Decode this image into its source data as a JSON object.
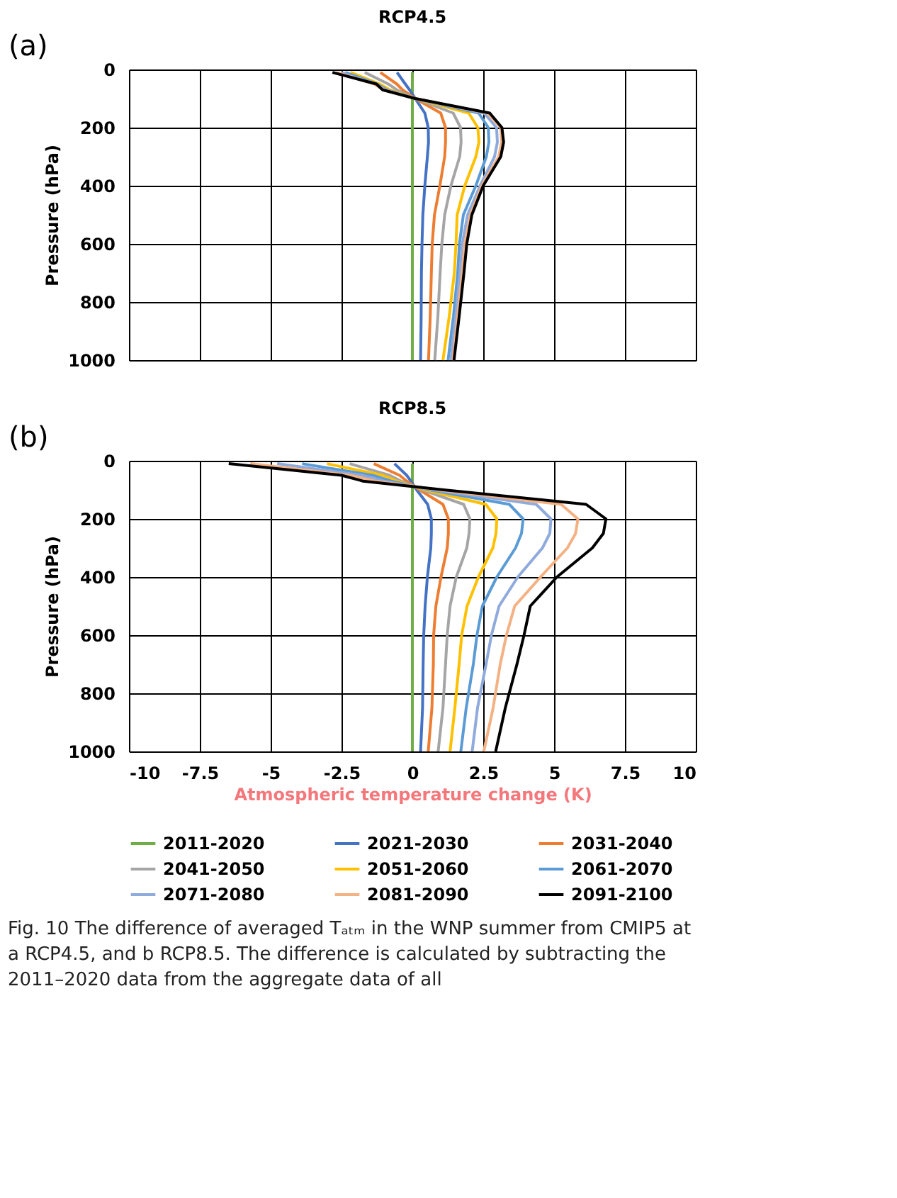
{
  "chart_data": [
    {
      "type": "line",
      "title": "RCP4.5",
      "annotations": [
        "(a)"
      ],
      "ylabel": "Pressure (hPa)",
      "xlim": [
        -10,
        10
      ],
      "xticks": [
        -10,
        -7.5,
        -5,
        -2.5,
        0,
        2.5,
        5,
        7.5,
        10
      ],
      "ylim": [
        1000,
        0
      ],
      "yticks": [
        0,
        200,
        400,
        600,
        800,
        1000
      ],
      "grid": true,
      "legend": "bottom",
      "tick_labels": "y",
      "series": [
        {
          "name": "2011-2020",
          "color": "#70ad47",
          "x": [
            0,
            0,
            0,
            0,
            0,
            0,
            0,
            0,
            0,
            0,
            0,
            0,
            0,
            0
          ],
          "values": [
            10,
            50,
            70,
            100,
            150,
            200,
            250,
            300,
            400,
            500,
            600,
            700,
            850,
            1000
          ]
        },
        {
          "name": "2021-2030",
          "color": "#4472c4",
          "x": [
            -0.54,
            -0.25,
            -0.1,
            0.1,
            0.44,
            0.56,
            0.57,
            0.53,
            0.44,
            0.37,
            0.34,
            0.32,
            0.31,
            0.29
          ],
          "values": [
            10,
            50,
            70,
            100,
            150,
            200,
            250,
            300,
            400,
            500,
            600,
            700,
            850,
            1000
          ]
        },
        {
          "name": "2031-2040",
          "color": "#ed7d31",
          "x": [
            -1.13,
            -0.55,
            -0.35,
            0.1,
            1.0,
            1.17,
            1.17,
            1.14,
            0.97,
            0.78,
            0.7,
            0.67,
            0.63,
            0.57
          ],
          "values": [
            10,
            50,
            70,
            100,
            150,
            200,
            250,
            300,
            400,
            500,
            600,
            700,
            850,
            1000
          ]
        },
        {
          "name": "2041-2050",
          "color": "#a5a5a5",
          "x": [
            -1.68,
            -0.85,
            -0.55,
            0.1,
            1.44,
            1.7,
            1.72,
            1.67,
            1.36,
            1.14,
            1.04,
            0.98,
            0.9,
            0.79
          ],
          "values": [
            10,
            50,
            70,
            100,
            150,
            200,
            250,
            300,
            400,
            500,
            600,
            700,
            850,
            1000
          ]
        },
        {
          "name": "2051-2060",
          "color": "#ffc000",
          "x": [
            -2.18,
            -1.15,
            -0.8,
            0.1,
            1.99,
            2.31,
            2.35,
            2.24,
            1.85,
            1.58,
            1.54,
            1.48,
            1.3,
            1.08
          ],
          "values": [
            10,
            50,
            70,
            100,
            150,
            200,
            250,
            300,
            400,
            500,
            600,
            700,
            850,
            1000
          ]
        },
        {
          "name": "2061-2070",
          "color": "#5b9bd5",
          "x": [
            -2.37,
            -1.25,
            -0.9,
            0.1,
            2.34,
            2.68,
            2.7,
            2.61,
            2.24,
            1.8,
            1.66,
            1.6,
            1.45,
            1.26
          ],
          "values": [
            10,
            50,
            70,
            100,
            150,
            200,
            250,
            300,
            400,
            500,
            600,
            700,
            850,
            1000
          ]
        },
        {
          "name": "2071-2080",
          "color": "#8faadc",
          "x": [
            -2.52,
            -1.3,
            -0.95,
            0.1,
            2.53,
            2.97,
            3.0,
            2.9,
            2.39,
            1.95,
            1.76,
            1.68,
            1.53,
            1.36
          ],
          "values": [
            10,
            50,
            70,
            100,
            150,
            200,
            250,
            300,
            400,
            500,
            600,
            700,
            850,
            1000
          ]
        },
        {
          "name": "2081-2090",
          "color": "#f4b183",
          "x": [
            -2.67,
            -1.35,
            -1.0,
            0.1,
            2.65,
            3.12,
            3.15,
            3.05,
            2.45,
            2.05,
            1.85,
            1.76,
            1.6,
            1.43
          ],
          "values": [
            10,
            50,
            70,
            100,
            150,
            200,
            250,
            300,
            400,
            500,
            600,
            700,
            850,
            1000
          ]
        },
        {
          "name": "2091-2100",
          "color": "#000000",
          "x": [
            -2.82,
            -1.27,
            -1.05,
            0.1,
            2.73,
            3.16,
            3.22,
            3.12,
            2.5,
            2.1,
            1.92,
            1.82,
            1.65,
            1.47
          ],
          "values": [
            10,
            50,
            70,
            100,
            150,
            200,
            250,
            300,
            400,
            500,
            600,
            700,
            850,
            1000
          ]
        }
      ]
    },
    {
      "type": "line",
      "title": "RCP8.5",
      "annotations": [
        "(b)",
        "Fig. 10  The difference of averaged Tₐₜₘ in the WNP summer from CMIP5 at a RCP4.5, and b RCP8.5. The difference is calculated by subtracting the 2011–2020 data from the aggregate data of all"
      ],
      "xlabel": "Atmospheric temperature change (K)",
      "ylabel": "Pressure (hPa)",
      "xlim": [
        -10,
        10
      ],
      "xticks": [
        -10,
        -7.5,
        -5,
        -2.5,
        0,
        2.5,
        5,
        7.5,
        10
      ],
      "ylim": [
        1000,
        0
      ],
      "yticks": [
        0,
        200,
        400,
        600,
        800,
        1000
      ],
      "grid": true,
      "legend": "bottom",
      "series": [
        {
          "name": "2011-2020",
          "color": "#70ad47",
          "x": [
            0,
            0,
            0,
            0,
            0,
            0,
            0,
            0,
            0,
            0,
            0,
            0,
            0,
            0
          ],
          "values": [
            10,
            50,
            70,
            100,
            150,
            200,
            250,
            300,
            400,
            500,
            600,
            700,
            850,
            1000
          ]
        },
        {
          "name": "2021-2030",
          "color": "#4472c4",
          "x": [
            -0.63,
            -0.2,
            -0.05,
            0.15,
            0.54,
            0.67,
            0.67,
            0.65,
            0.53,
            0.45,
            0.4,
            0.38,
            0.36,
            0.29
          ],
          "values": [
            10,
            50,
            70,
            100,
            150,
            200,
            250,
            300,
            400,
            500,
            600,
            700,
            850,
            1000
          ]
        },
        {
          "name": "2031-2040",
          "color": "#ed7d31",
          "x": [
            -1.36,
            -0.45,
            -0.2,
            0.25,
            1.08,
            1.27,
            1.27,
            1.23,
            1.01,
            0.83,
            0.75,
            0.74,
            0.69,
            0.56
          ],
          "values": [
            10,
            50,
            70,
            100,
            150,
            200,
            250,
            300,
            400,
            500,
            600,
            700,
            850,
            1000
          ]
        },
        {
          "name": "2041-2050",
          "color": "#a5a5a5",
          "x": [
            -2.21,
            -0.8,
            -0.4,
            0.35,
            1.81,
            2.03,
            2.0,
            1.92,
            1.55,
            1.33,
            1.23,
            1.17,
            1.08,
            0.91
          ],
          "values": [
            10,
            50,
            70,
            100,
            150,
            200,
            250,
            300,
            400,
            500,
            600,
            700,
            850,
            1000
          ]
        },
        {
          "name": "2051-2060",
          "color": "#ffc000",
          "x": [
            -3.01,
            -1.05,
            -0.55,
            0.45,
            2.59,
            2.98,
            2.95,
            2.84,
            2.33,
            1.93,
            1.74,
            1.65,
            1.5,
            1.33
          ],
          "values": [
            10,
            50,
            70,
            100,
            150,
            200,
            250,
            300,
            400,
            500,
            600,
            700,
            850,
            1000
          ]
        },
        {
          "name": "2061-2070",
          "color": "#5b9bd5",
          "x": [
            -3.89,
            -1.4,
            -0.75,
            0.6,
            3.42,
            3.91,
            3.85,
            3.64,
            2.98,
            2.47,
            2.28,
            2.15,
            1.9,
            1.71
          ],
          "values": [
            10,
            50,
            70,
            100,
            150,
            200,
            250,
            300,
            400,
            500,
            600,
            700,
            850,
            1000
          ]
        },
        {
          "name": "2071-2080",
          "color": "#8faadc",
          "x": [
            -4.77,
            -1.8,
            -1.0,
            0.75,
            4.37,
            4.89,
            4.85,
            4.59,
            3.72,
            3.06,
            2.79,
            2.6,
            2.3,
            2.11
          ],
          "values": [
            10,
            50,
            70,
            100,
            150,
            200,
            250,
            300,
            400,
            500,
            600,
            700,
            850,
            1000
          ]
        },
        {
          "name": "2081-2090",
          "color": "#f4b183",
          "x": [
            -5.72,
            -2.2,
            -1.3,
            0.9,
            5.25,
            5.84,
            5.76,
            5.47,
            4.52,
            3.61,
            3.32,
            3.1,
            2.85,
            2.52
          ],
          "values": [
            10,
            50,
            70,
            100,
            150,
            200,
            250,
            300,
            400,
            500,
            600,
            700,
            850,
            1000
          ]
        },
        {
          "name": "2091-2100",
          "color": "#000000",
          "x": [
            -6.48,
            -2.5,
            -1.74,
            1.1,
            6.13,
            6.83,
            6.74,
            6.35,
            5.1,
            4.16,
            3.94,
            3.69,
            3.28,
            2.94
          ],
          "values": [
            10,
            50,
            70,
            100,
            150,
            200,
            250,
            300,
            400,
            500,
            600,
            700,
            850,
            1000
          ]
        }
      ]
    }
  ]
}
